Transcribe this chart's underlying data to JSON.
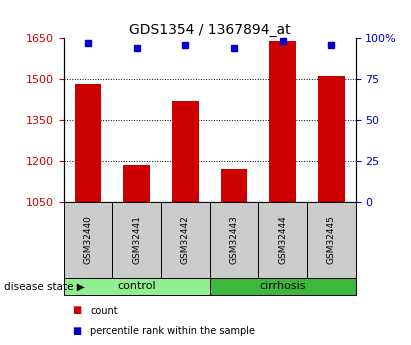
{
  "title": "GDS1354 / 1367894_at",
  "samples": [
    "GSM32440",
    "GSM32441",
    "GSM32442",
    "GSM32443",
    "GSM32444",
    "GSM32445"
  ],
  "counts": [
    1480,
    1185,
    1420,
    1170,
    1640,
    1510
  ],
  "percentiles": [
    97,
    94,
    96,
    94,
    98,
    96
  ],
  "ylim_left": [
    1050,
    1650
  ],
  "ylim_right": [
    0,
    100
  ],
  "yticks_left": [
    1050,
    1200,
    1350,
    1500,
    1650
  ],
  "yticks_right": [
    0,
    25,
    50,
    75,
    100
  ],
  "groups": [
    {
      "label": "control",
      "indices": [
        0,
        1,
        2
      ],
      "color": "#90EE90"
    },
    {
      "label": "cirrhosis",
      "indices": [
        3,
        4,
        5
      ],
      "color": "#3CB93C"
    }
  ],
  "bar_color": "#CC0000",
  "dot_color": "#0000CC",
  "axis_color_left": "#CC0000",
  "axis_color_right": "#0000CC",
  "grid_color": "black",
  "sample_box_color": "#CCCCCC",
  "disease_state_label": "disease state",
  "legend_items": [
    {
      "label": "count",
      "color": "#CC0000"
    },
    {
      "label": "percentile rank within the sample",
      "color": "#0000CC"
    }
  ]
}
